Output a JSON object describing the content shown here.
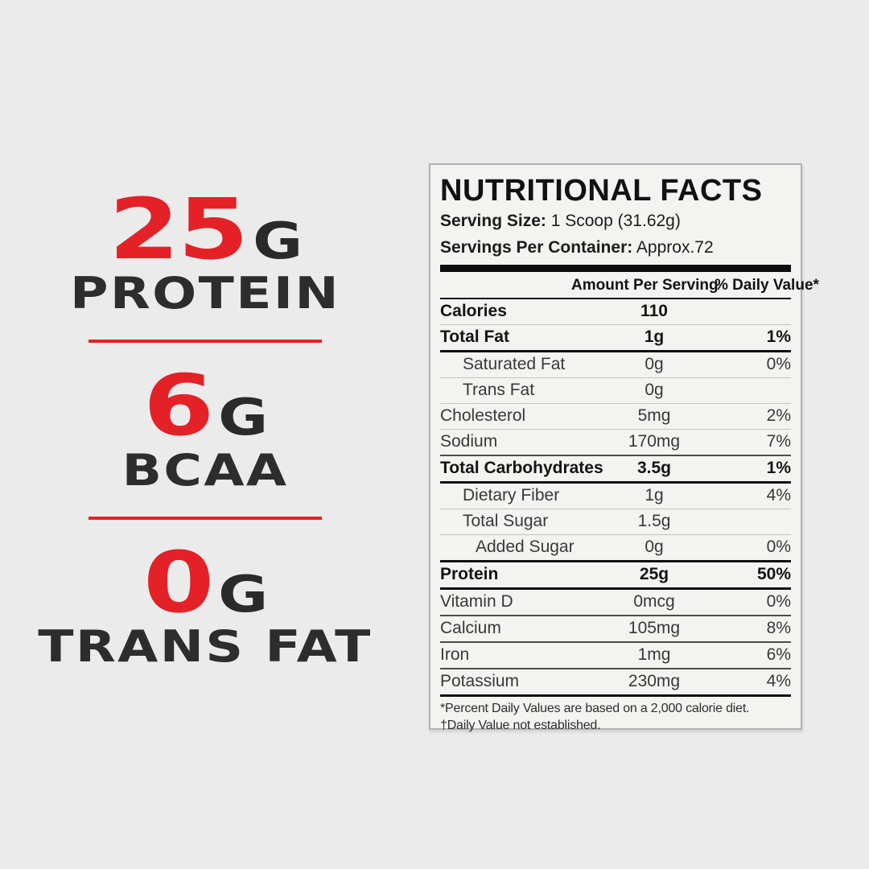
{
  "colors": {
    "accent_red": "#e32127",
    "dark_text": "#2b2a29",
    "panel_bg": "#f3f3f2",
    "page_bg": "#ebebeb"
  },
  "promo": {
    "stats": [
      {
        "value": "25",
        "unit": "G",
        "label": "PROTEIN"
      },
      {
        "value": "6",
        "unit": "G",
        "label": "BCAA"
      },
      {
        "value": "0",
        "unit": "G",
        "label": "TRANS FAT"
      }
    ]
  },
  "panel": {
    "title": "NUTRITIONAL FACTS",
    "serving_size_label": "Serving Size:",
    "serving_size_value": "1 Scoop (31.62g)",
    "servings_label": "Servings Per Container:",
    "servings_value": "Approx.72",
    "col_amount_header": "Amount Per Serving",
    "col_dv_header": "% Daily Value*",
    "rows": [
      {
        "label": "Calories",
        "amount": "110",
        "dv": "",
        "style": "regular",
        "bold": true,
        "indent": 0,
        "rule": "light"
      },
      {
        "label": "Total Fat",
        "amount": "1g",
        "dv": "1%",
        "style": "regular",
        "bold": true,
        "indent": 0,
        "rule": "thick"
      },
      {
        "label": "Saturated Fat",
        "amount": "0g",
        "dv": "0%",
        "style": "regular",
        "bold": false,
        "indent": 1,
        "rule": "light"
      },
      {
        "label": "Trans Fat",
        "amount": "0g",
        "dv": "",
        "style": "regular",
        "bold": false,
        "indent": 1,
        "rule": "light"
      },
      {
        "label": "Cholesterol",
        "amount": "5mg",
        "dv": "2%",
        "style": "regular",
        "bold": false,
        "indent": 0,
        "rule": "light"
      },
      {
        "label": "Sodium",
        "amount": "170mg",
        "dv": "7%",
        "style": "regular",
        "bold": false,
        "indent": 0,
        "rule": "medium"
      },
      {
        "label": "Total Carbohydrates",
        "amount": "3.5g",
        "dv": "1%",
        "style": "regular",
        "bold": true,
        "indent": 0,
        "rule": "thick"
      },
      {
        "label": "Dietary Fiber",
        "amount": "1g",
        "dv": "4%",
        "style": "regular",
        "bold": false,
        "indent": 1,
        "rule": "light"
      },
      {
        "label": "Total Sugar",
        "amount": "1.5g",
        "dv": "",
        "style": "regular",
        "bold": false,
        "indent": 1,
        "rule": "light"
      },
      {
        "label": "Added Sugar",
        "amount": "0g",
        "dv": "0%",
        "style": "regular",
        "bold": false,
        "indent": 2,
        "rule": "thick"
      },
      {
        "label": "Protein",
        "amount": "25g",
        "dv": "50%",
        "style": "regular",
        "bold": true,
        "indent": 0,
        "rule": "thick"
      },
      {
        "label": "Vitamin D",
        "amount": "0mcg",
        "dv": "0%",
        "style": "regular",
        "bold": false,
        "indent": 0,
        "rule": "medium"
      },
      {
        "label": "Calcium",
        "amount": "105mg",
        "dv": "8%",
        "style": "regular",
        "bold": false,
        "indent": 0,
        "rule": "medium"
      },
      {
        "label": "Iron",
        "amount": "1mg",
        "dv": "6%",
        "style": "regular",
        "bold": false,
        "indent": 0,
        "rule": "medium"
      },
      {
        "label": "Potassium",
        "amount": "230mg",
        "dv": "4%",
        "style": "regular",
        "bold": false,
        "indent": 0,
        "rule": "thick"
      }
    ],
    "footnotes": [
      {
        "prefix": "*",
        "text": "Percent Daily Values are based on a 2,000 calorie diet."
      },
      {
        "prefix": "†",
        "text": "Daily Value not established."
      }
    ]
  }
}
